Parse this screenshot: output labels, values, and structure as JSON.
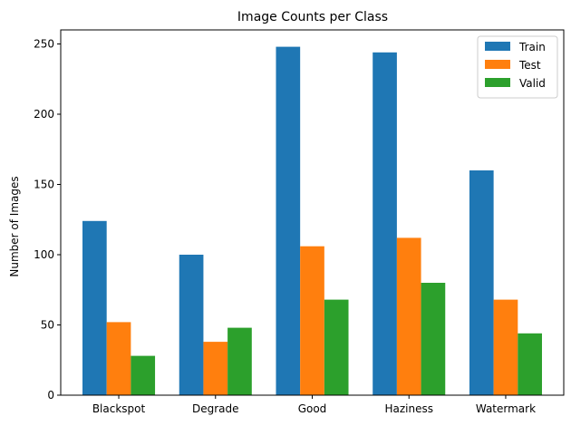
{
  "chart_data": {
    "type": "bar",
    "title": "Image Counts per Class",
    "xlabel": "",
    "ylabel": "Number of Images",
    "categories": [
      "Blackspot",
      "Degrade",
      "Good",
      "Haziness",
      "Watermark"
    ],
    "series": [
      {
        "name": "Train",
        "color": "#1f77b4",
        "values": [
          124,
          100,
          248,
          244,
          160
        ]
      },
      {
        "name": "Test",
        "color": "#ff7f0e",
        "values": [
          52,
          38,
          106,
          112,
          68
        ]
      },
      {
        "name": "Valid",
        "color": "#2ca02c",
        "values": [
          28,
          48,
          68,
          80,
          44
        ]
      }
    ],
    "ylim": [
      0,
      260
    ],
    "yticks": [
      0,
      50,
      100,
      150,
      200,
      250
    ],
    "grid": false,
    "legend_position": "top-right"
  }
}
